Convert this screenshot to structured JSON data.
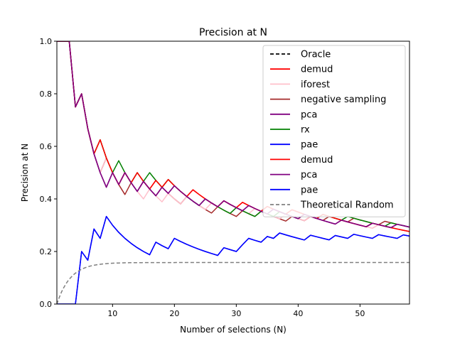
{
  "chart_data": {
    "type": "line",
    "title": "Precision at N",
    "xlabel": "Number of selections (N)",
    "ylabel": "Precision at N",
    "xlim": [
      1,
      58
    ],
    "ylim": [
      0,
      1.0
    ],
    "x_ticks": [
      10,
      20,
      30,
      40,
      50
    ],
    "y_ticks": [
      0.0,
      0.2,
      0.4,
      0.6,
      0.8,
      1.0
    ],
    "grid": false,
    "legend_position": "top-right",
    "hits": {
      "Oracle": [],
      "demud": [
        1,
        2,
        3,
        5,
        8,
        12,
        14,
        17,
        19,
        23,
        28,
        31,
        35,
        39,
        44,
        52
      ],
      "iforest": [
        1,
        2,
        3,
        5,
        9,
        12,
        16,
        19,
        22,
        26,
        30,
        33,
        38,
        42,
        47,
        53
      ],
      "negative sampling": [
        1,
        2,
        3,
        5,
        9,
        13,
        15,
        18,
        22,
        27,
        31,
        34,
        39,
        42,
        45,
        49,
        54
      ],
      "pca": [
        1,
        2,
        3,
        5,
        10,
        12,
        15,
        18,
        20,
        25,
        28,
        32,
        36,
        41,
        47,
        52,
        56
      ],
      "rx": [
        1,
        2,
        3,
        5,
        8,
        11,
        14,
        16,
        19,
        25,
        30,
        34,
        37,
        41,
        44,
        48,
        55
      ],
      "pae": [
        5,
        7,
        9,
        17,
        20,
        28,
        31,
        32,
        35,
        37,
        42,
        46,
        49,
        53,
        57
      ],
      "Theoretical Random": []
    },
    "series": [
      {
        "name": "Oracle",
        "color": "#000000",
        "dash": "dashed"
      },
      {
        "name": "demud",
        "color": "#ff0000",
        "dash": "solid"
      },
      {
        "name": "iforest",
        "color": "#ffc0cb",
        "dash": "solid"
      },
      {
        "name": "negative sampling",
        "color": "#a52a2a",
        "dash": "solid"
      },
      {
        "name": "pca",
        "color": "#800080",
        "dash": "solid"
      },
      {
        "name": "rx",
        "color": "#008000",
        "dash": "solid"
      },
      {
        "name": "pae",
        "color": "#0000ff",
        "dash": "solid"
      },
      {
        "name": "demud",
        "color": "#ff0000",
        "dash": "solid"
      },
      {
        "name": "pca",
        "color": "#800080",
        "dash": "solid"
      },
      {
        "name": "pae",
        "color": "#0000ff",
        "dash": "solid"
      },
      {
        "name": "Theoretical Random",
        "color": "#808080",
        "dash": "dashed"
      }
    ]
  }
}
